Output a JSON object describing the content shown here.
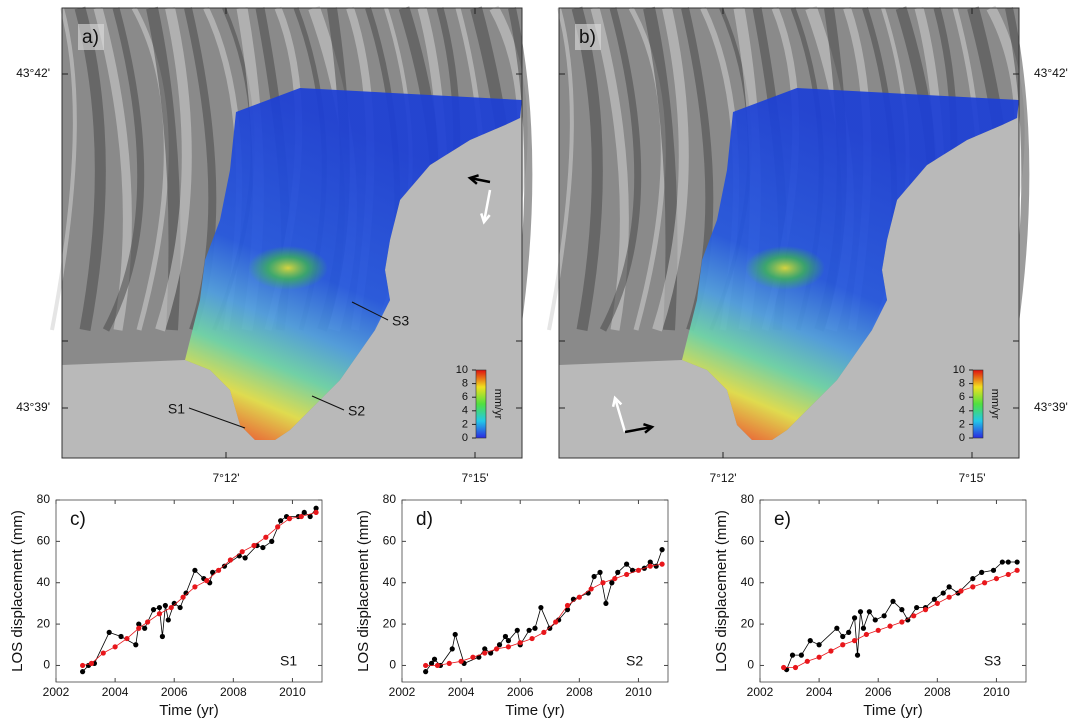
{
  "maps": [
    {
      "panel_label": "a)"
    },
    {
      "panel_label": "b)"
    }
  ],
  "site_labels": [
    "S1",
    "S2",
    "S3"
  ],
  "latitude_labels": [
    "43°42'",
    "43°39'"
  ],
  "longitude_labels": [
    "7°12'",
    "7°15'"
  ],
  "colorbar": {
    "lim": [
      0,
      10
    ],
    "ticks": [
      0,
      2,
      4,
      6,
      8,
      10
    ],
    "unit": "mm/yr"
  },
  "chart_data": [
    {
      "type": "line",
      "panel_label": "c)",
      "site_label": "S1",
      "xlabel": "Time (yr)",
      "ylabel": "LOS displacement (mm)",
      "xlim": [
        2002,
        2011
      ],
      "ylim": [
        -8,
        80
      ],
      "xticks": [
        2002,
        2004,
        2006,
        2008,
        2010
      ],
      "yticks": [
        0,
        20,
        40,
        60,
        80
      ],
      "series": [
        {
          "color": "#000000",
          "x": [
            2002.9,
            2003.1,
            2003.3,
            2003.8,
            2004.2,
            2004.7,
            2004.8,
            2005.0,
            2005.3,
            2005.5,
            2005.6,
            2005.7,
            2005.8,
            2006.0,
            2006.2,
            2006.4,
            2006.7,
            2007.0,
            2007.2,
            2007.3,
            2007.7,
            2008.2,
            2008.4,
            2008.8,
            2009.0,
            2009.3,
            2009.6,
            2009.8,
            2010.2,
            2010.4,
            2010.6,
            2010.8
          ],
          "values": [
            -3,
            0,
            1,
            16,
            14,
            10,
            20,
            18,
            27,
            28,
            14,
            29,
            22,
            30,
            28,
            35,
            46,
            42,
            40,
            45,
            48,
            53,
            52,
            58,
            57,
            60,
            70,
            72,
            72,
            74,
            72,
            76
          ]
        },
        {
          "color": "#e8161b",
          "x": [
            2002.9,
            2003.2,
            2003.6,
            2004.0,
            2004.4,
            2004.8,
            2005.1,
            2005.5,
            2005.9,
            2006.3,
            2006.7,
            2007.1,
            2007.5,
            2007.9,
            2008.3,
            2008.7,
            2009.1,
            2009.5,
            2009.9,
            2010.3,
            2010.8
          ],
          "values": [
            0,
            1,
            6,
            9,
            13,
            18,
            21,
            25,
            28,
            33,
            38,
            41,
            46,
            51,
            55,
            58,
            62,
            67,
            71,
            72,
            74
          ]
        }
      ]
    },
    {
      "type": "line",
      "panel_label": "d)",
      "site_label": "S2",
      "xlabel": "Time (yr)",
      "ylabel": "LOS displacement (mm)",
      "xlim": [
        2002,
        2011
      ],
      "ylim": [
        -8,
        80
      ],
      "xticks": [
        2002,
        2004,
        2006,
        2008,
        2010
      ],
      "yticks": [
        0,
        20,
        40,
        60,
        80
      ],
      "series": [
        {
          "color": "#000000",
          "x": [
            2002.8,
            2003.0,
            2003.1,
            2003.3,
            2003.7,
            2003.8,
            2004.1,
            2004.6,
            2004.8,
            2005.0,
            2005.3,
            2005.5,
            2005.6,
            2005.9,
            2006.0,
            2006.3,
            2006.5,
            2006.7,
            2007.0,
            2007.3,
            2007.6,
            2007.8,
            2008.3,
            2008.5,
            2008.7,
            2008.9,
            2009.1,
            2009.3,
            2009.6,
            2009.8,
            2010.2,
            2010.4,
            2010.6,
            2010.8
          ],
          "values": [
            -3,
            1,
            3,
            0,
            8,
            15,
            1,
            4,
            8,
            6,
            10,
            14,
            12,
            17,
            10,
            17,
            18,
            28,
            18,
            22,
            27,
            32,
            35,
            43,
            45,
            30,
            40,
            45,
            49,
            46,
            47,
            50,
            48,
            56
          ]
        },
        {
          "color": "#e8161b",
          "x": [
            2002.8,
            2003.2,
            2003.6,
            2004.0,
            2004.4,
            2004.8,
            2005.2,
            2005.6,
            2006.0,
            2006.4,
            2006.8,
            2007.2,
            2007.6,
            2008.0,
            2008.4,
            2008.8,
            2009.2,
            2009.6,
            2010.0,
            2010.4,
            2010.8
          ],
          "values": [
            0,
            0,
            1,
            2,
            4,
            6,
            8,
            9,
            11,
            13,
            16,
            21,
            29,
            33,
            37,
            40,
            42,
            44,
            46,
            48,
            49
          ]
        }
      ]
    },
    {
      "type": "line",
      "panel_label": "e)",
      "site_label": "S3",
      "xlabel": "Time (yr)",
      "ylabel": "LOS displacement (mm)",
      "xlim": [
        2002,
        2011
      ],
      "ylim": [
        -8,
        80
      ],
      "xticks": [
        2002,
        2004,
        2006,
        2008,
        2010
      ],
      "yticks": [
        0,
        20,
        40,
        60,
        80
      ],
      "series": [
        {
          "color": "#000000",
          "x": [
            2002.9,
            2003.1,
            2003.4,
            2003.7,
            2004.0,
            2004.6,
            2004.8,
            2005.0,
            2005.2,
            2005.3,
            2005.4,
            2005.5,
            2005.7,
            2005.9,
            2006.2,
            2006.5,
            2006.8,
            2007.0,
            2007.3,
            2007.6,
            2007.9,
            2008.2,
            2008.4,
            2008.7,
            2009.2,
            2009.5,
            2009.9,
            2010.2,
            2010.4,
            2010.7
          ],
          "values": [
            -2,
            5,
            5,
            12,
            10,
            18,
            14,
            16,
            23,
            5,
            26,
            18,
            26,
            22,
            24,
            31,
            27,
            22,
            28,
            28,
            32,
            35,
            38,
            35,
            42,
            45,
            46,
            50,
            50,
            50
          ]
        },
        {
          "color": "#e8161b",
          "x": [
            2002.8,
            2003.2,
            2003.6,
            2004.0,
            2004.4,
            2004.8,
            2005.2,
            2005.6,
            2006.0,
            2006.4,
            2006.8,
            2007.2,
            2007.6,
            2008.0,
            2008.4,
            2008.8,
            2009.2,
            2009.6,
            2010.0,
            2010.4,
            2010.7
          ],
          "values": [
            -1,
            -1,
            2,
            4,
            7,
            10,
            12,
            15,
            17,
            19,
            21,
            24,
            27,
            30,
            33,
            36,
            38,
            40,
            42,
            44,
            46
          ]
        }
      ]
    }
  ]
}
